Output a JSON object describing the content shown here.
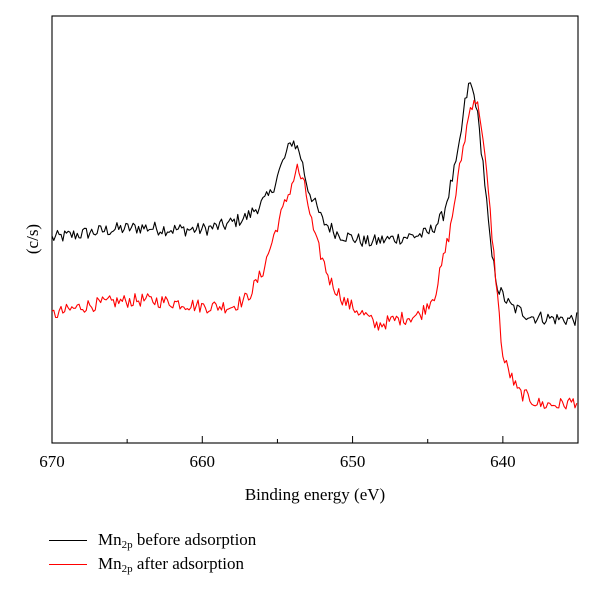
{
  "chart_data": {
    "type": "line",
    "xlabel": "Binding energy (eV)",
    "ylabel": "(c/s)",
    "xlim": [
      670,
      635
    ],
    "x_reversed": true,
    "ylim": [
      0,
      100
    ],
    "y_tick_labels_shown": false,
    "x_ticks": [
      670,
      660,
      650,
      640
    ],
    "grid": false,
    "legend_position": "bottom-left, below plot",
    "series": [
      {
        "name": "Mn2p before adsorption",
        "name_main": "Mn",
        "name_sub": "2p",
        "name_rest": " before adsorption",
        "color": "#000000",
        "points": [
          [
            670,
            48
          ],
          [
            668,
            49
          ],
          [
            666,
            50
          ],
          [
            664,
            50.5
          ],
          [
            662,
            50
          ],
          [
            660,
            50
          ],
          [
            658.5,
            51
          ],
          [
            657,
            53
          ],
          [
            655.5,
            58
          ],
          [
            654.5,
            67
          ],
          [
            654,
            71
          ],
          [
            653.5,
            68
          ],
          [
            653,
            60
          ],
          [
            652,
            52
          ],
          [
            651,
            49
          ],
          [
            649,
            47
          ],
          [
            647,
            48
          ],
          [
            645,
            49
          ],
          [
            644,
            53
          ],
          [
            643,
            67
          ],
          [
            642.5,
            80
          ],
          [
            642.2,
            84.5
          ],
          [
            641.8,
            80
          ],
          [
            641.3,
            65
          ],
          [
            640.8,
            45
          ],
          [
            640.3,
            36
          ],
          [
            639.5,
            32
          ],
          [
            638,
            29.5
          ],
          [
            636,
            29
          ],
          [
            635,
            29
          ]
        ]
      },
      {
        "name": "Mn2p after adsorption",
        "name_main": "Mn",
        "name_sub": "2p",
        "name_rest": " after adsorption",
        "color": "#ff0000",
        "points": [
          [
            670,
            30
          ],
          [
            668,
            32
          ],
          [
            666,
            33
          ],
          [
            664,
            33.5
          ],
          [
            662,
            33
          ],
          [
            660,
            32
          ],
          [
            658,
            32
          ],
          [
            657,
            34
          ],
          [
            656,
            40
          ],
          [
            655,
            51
          ],
          [
            654,
            61
          ],
          [
            653.7,
            64.5
          ],
          [
            653.2,
            60
          ],
          [
            652.5,
            48
          ],
          [
            651.5,
            38
          ],
          [
            650.5,
            33
          ],
          [
            649,
            29.5
          ],
          [
            648.5,
            27.5
          ],
          [
            647,
            29
          ],
          [
            645.5,
            30
          ],
          [
            644.5,
            35
          ],
          [
            643.5,
            50
          ],
          [
            642.8,
            66
          ],
          [
            642.2,
            78
          ],
          [
            641.9,
            81
          ],
          [
            641.5,
            77
          ],
          [
            641,
            60
          ],
          [
            640.5,
            40
          ],
          [
            640,
            20
          ],
          [
            639,
            12
          ],
          [
            637.5,
            9
          ],
          [
            636,
            9
          ],
          [
            635,
            10
          ]
        ]
      }
    ]
  }
}
